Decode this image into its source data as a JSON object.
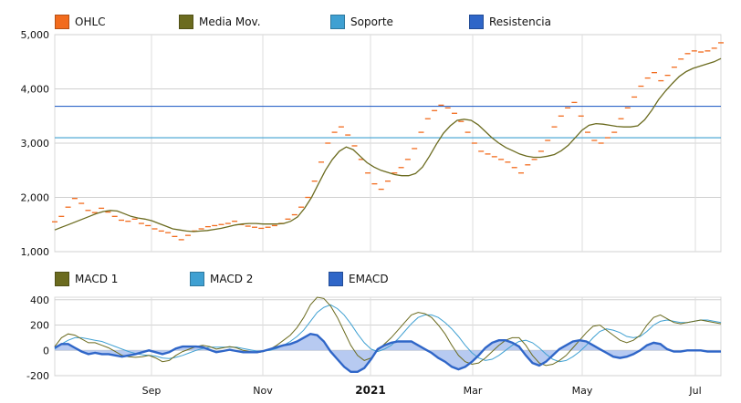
{
  "chart_data": [
    {
      "type": "line",
      "panel": "price",
      "legend": [
        {
          "name": "OHLC",
          "color": "#f26b1d"
        },
        {
          "name": "Media Mov.",
          "color": "#6b6b1f"
        },
        {
          "name": "Soporte",
          "color": "#3fa0d2"
        },
        {
          "name": "Resistencia",
          "color": "#2f66c8"
        }
      ],
      "x_ticks": [
        "Sep",
        "Nov",
        "2021",
        "Mar",
        "May",
        "Jul"
      ],
      "y_ticks": [
        "1,000",
        "2,000",
        "3,000",
        "4,000",
        "5,000"
      ],
      "ylim": [
        1000,
        5000
      ],
      "grid": true,
      "legend_position": "top",
      "support": 3100,
      "resistance": 3680,
      "ohlc": [
        1550,
        1650,
        1820,
        1980,
        1890,
        1760,
        1720,
        1800,
        1730,
        1650,
        1580,
        1560,
        1600,
        1520,
        1480,
        1420,
        1380,
        1350,
        1280,
        1220,
        1300,
        1380,
        1420,
        1460,
        1480,
        1500,
        1520,
        1560,
        1500,
        1470,
        1450,
        1430,
        1450,
        1480,
        1520,
        1600,
        1680,
        1820,
        2000,
        2300,
        2650,
        3000,
        3200,
        3300,
        3150,
        2950,
        2700,
        2450,
        2250,
        2150,
        2300,
        2450,
        2550,
        2700,
        2900,
        3200,
        3450,
        3600,
        3700,
        3650,
        3550,
        3400,
        3200,
        3000,
        2850,
        2800,
        2750,
        2700,
        2650,
        2550,
        2450,
        2600,
        2700,
        2850,
        3050,
        3300,
        3500,
        3650,
        3750,
        3500,
        3200,
        3050,
        3000,
        3100,
        3200,
        3450,
        3650,
        3850,
        4050,
        4200,
        4300,
        4150,
        4250,
        4400,
        4550,
        4650,
        4700,
        4680,
        4700,
        4750,
        4850
      ],
      "moving_average": [
        1400,
        1450,
        1500,
        1550,
        1600,
        1650,
        1700,
        1740,
        1760,
        1750,
        1700,
        1650,
        1620,
        1600,
        1570,
        1520,
        1470,
        1420,
        1400,
        1380,
        1370,
        1380,
        1390,
        1410,
        1430,
        1460,
        1490,
        1510,
        1520,
        1520,
        1510,
        1510,
        1510,
        1520,
        1560,
        1640,
        1800,
        2000,
        2250,
        2500,
        2700,
        2850,
        2930,
        2880,
        2760,
        2640,
        2560,
        2500,
        2460,
        2420,
        2400,
        2400,
        2440,
        2560,
        2760,
        2980,
        3180,
        3320,
        3420,
        3440,
        3420,
        3340,
        3220,
        3100,
        3000,
        2920,
        2860,
        2800,
        2760,
        2740,
        2740,
        2760,
        2790,
        2860,
        2960,
        3100,
        3240,
        3330,
        3360,
        3350,
        3330,
        3310,
        3300,
        3300,
        3320,
        3430,
        3600,
        3800,
        3960,
        4100,
        4230,
        4320,
        4380,
        4420,
        4460,
        4500,
        4560
      ]
    },
    {
      "type": "area",
      "panel": "macd",
      "legend": [
        {
          "name": "MACD 1",
          "color": "#6b6b1f"
        },
        {
          "name": "MACD 2",
          "color": "#3fa0d2"
        },
        {
          "name": "EMACD",
          "color": "#2f66c8"
        }
      ],
      "x_ticks": [
        "Sep",
        "Nov",
        "2021",
        "Mar",
        "May",
        "Jul"
      ],
      "y_ticks": [
        "-200",
        "0",
        "200",
        "400"
      ],
      "ylim": [
        -200,
        420
      ],
      "grid": true,
      "legend_position": "top",
      "macd1": [
        30,
        100,
        130,
        120,
        90,
        60,
        60,
        40,
        20,
        -10,
        -40,
        -50,
        -55,
        -50,
        -40,
        -60,
        -90,
        -80,
        -40,
        -10,
        10,
        30,
        40,
        30,
        10,
        20,
        30,
        20,
        0,
        -10,
        -20,
        -10,
        10,
        40,
        80,
        120,
        180,
        260,
        360,
        420,
        410,
        350,
        260,
        150,
        40,
        -40,
        -80,
        -60,
        0,
        50,
        100,
        160,
        220,
        280,
        300,
        290,
        260,
        200,
        130,
        40,
        -40,
        -90,
        -110,
        -100,
        -60,
        -10,
        40,
        80,
        100,
        100,
        40,
        -40,
        -100,
        -120,
        -110,
        -80,
        -40,
        20,
        80,
        140,
        190,
        200,
        160,
        120,
        80,
        60,
        80,
        120,
        200,
        260,
        280,
        250,
        220,
        210,
        220,
        230,
        240,
        230,
        220,
        210
      ],
      "macd2": [
        10,
        50,
        80,
        100,
        100,
        90,
        80,
        70,
        50,
        30,
        10,
        -10,
        -25,
        -35,
        -40,
        -45,
        -60,
        -65,
        -55,
        -40,
        -20,
        0,
        15,
        25,
        25,
        25,
        25,
        25,
        15,
        5,
        -5,
        -5,
        0,
        15,
        40,
        70,
        110,
        160,
        230,
        300,
        340,
        360,
        330,
        280,
        210,
        130,
        60,
        10,
        -10,
        10,
        40,
        90,
        150,
        210,
        260,
        280,
        280,
        260,
        220,
        170,
        110,
        40,
        -20,
        -60,
        -80,
        -70,
        -40,
        0,
        40,
        70,
        80,
        60,
        20,
        -30,
        -70,
        -90,
        -80,
        -50,
        -10,
        40,
        100,
        150,
        170,
        160,
        140,
        110,
        100,
        110,
        150,
        200,
        230,
        240,
        230,
        220,
        220,
        230,
        240,
        240,
        230,
        220
      ],
      "emacd": [
        20,
        50,
        50,
        20,
        -10,
        -30,
        -20,
        -30,
        -30,
        -40,
        -50,
        -40,
        -30,
        -15,
        0,
        -15,
        -30,
        -15,
        15,
        30,
        30,
        30,
        25,
        5,
        -15,
        -5,
        5,
        -5,
        -15,
        -15,
        -15,
        -5,
        10,
        25,
        40,
        50,
        70,
        100,
        130,
        120,
        70,
        -10,
        -70,
        -130,
        -170,
        -170,
        -140,
        -70,
        10,
        40,
        60,
        70,
        70,
        70,
        40,
        10,
        -20,
        -60,
        -90,
        -130,
        -150,
        -130,
        -90,
        -40,
        20,
        60,
        80,
        80,
        60,
        30,
        -40,
        -100,
        -120,
        -90,
        -40,
        10,
        40,
        70,
        80,
        70,
        40,
        10,
        -20,
        -50,
        -60,
        -50,
        -30,
        0,
        40,
        60,
        50,
        10,
        -10,
        -10,
        0,
        0,
        0,
        -10,
        -10,
        -10
      ]
    }
  ]
}
